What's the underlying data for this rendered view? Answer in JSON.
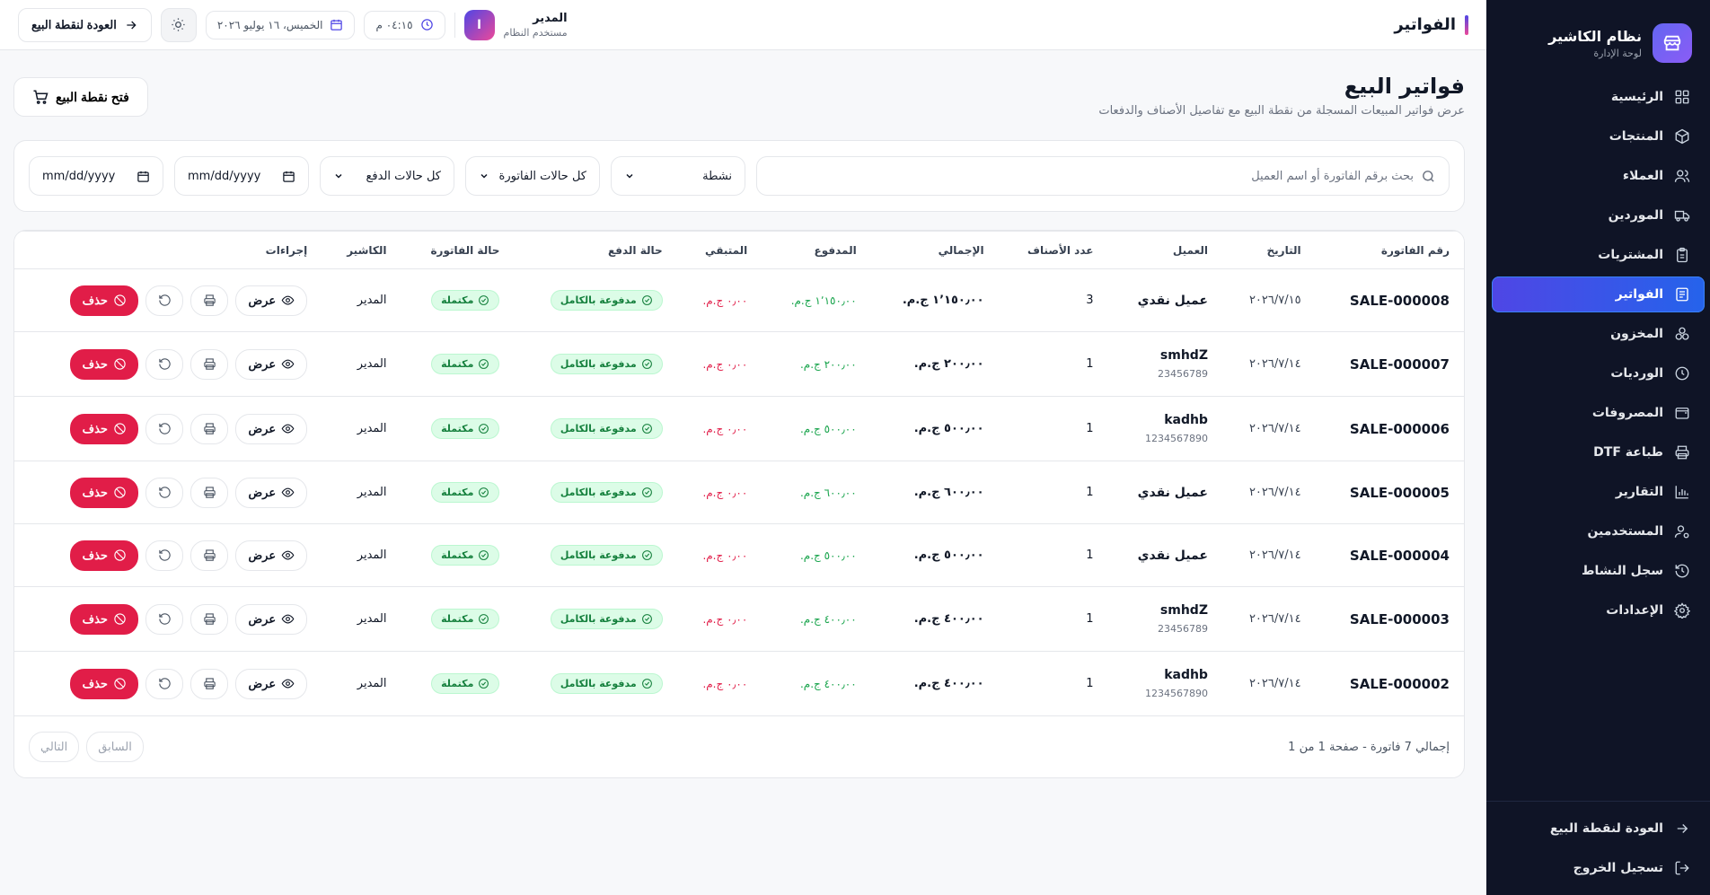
{
  "sidebar": {
    "brand_title": "نظام الكاشير",
    "brand_sub": "لوحة الإدارة",
    "items": [
      {
        "label": "الرئيسية",
        "icon": "grid-icon"
      },
      {
        "label": "المنتجات",
        "icon": "box-icon"
      },
      {
        "label": "العملاء",
        "icon": "users-icon"
      },
      {
        "label": "الموردين",
        "icon": "truck-icon"
      },
      {
        "label": "المشتريات",
        "icon": "clipboard-icon"
      },
      {
        "label": "الفواتير",
        "icon": "receipt-icon",
        "active": true
      },
      {
        "label": "المخزون",
        "icon": "boxes-icon"
      },
      {
        "label": "الورديات",
        "icon": "clock-icon"
      },
      {
        "label": "المصروفات",
        "icon": "wallet-icon"
      },
      {
        "label": "طباعة DTF",
        "icon": "printer-icon"
      },
      {
        "label": "التقارير",
        "icon": "chart-icon"
      },
      {
        "label": "المستخدمين",
        "icon": "user-cog-icon"
      },
      {
        "label": "سجل النشاط",
        "icon": "history-icon"
      },
      {
        "label": "الإعدادات",
        "icon": "gear-icon"
      }
    ],
    "bottom": [
      {
        "label": "العودة لنقطة البيع",
        "icon": "arrow-right-icon"
      },
      {
        "label": "تسجيل الخروج",
        "icon": "logout-icon"
      }
    ]
  },
  "topbar": {
    "page_title": "الفواتير",
    "back_label": "العودة لنقطة البيع",
    "date": "الخميس، ١٦ يوليو ٢٠٢٦",
    "time": "٠٤:١٥ م",
    "user_initial": "ا",
    "user_name": "المدير",
    "user_role": "مستخدم النظام"
  },
  "header": {
    "title": "فواتير البيع",
    "subtitle": "عرض فواتير المبيعات المسجلة من نقطة البيع مع تفاصيل الأصناف والدفعات",
    "open_pos": "فتح نقطة البيع"
  },
  "filters": {
    "search_placeholder": "بحث برقم الفاتورة أو اسم العميل",
    "status": "نشطة",
    "invoice_status": "كل حالات الفاتورة",
    "payment_status": "كل حالات الدفع",
    "date_from": "mm/dd/yyyy",
    "date_to": "mm/dd/yyyy"
  },
  "table": {
    "headers": [
      "رقم الفاتورة",
      "التاريخ",
      "العميل",
      "عدد الأصناف",
      "الإجمالي",
      "المدفوع",
      "المتبقي",
      "حالة الدفع",
      "حالة الفاتورة",
      "الكاشير",
      "إجراءات"
    ],
    "view_label": "عرض",
    "delete_label": "حذف",
    "rows": [
      {
        "id": "SALE-000008",
        "date": "٢٠٢٦/٧/١٥",
        "customer": "عميل نقدي",
        "phone": "",
        "items": "3",
        "total": "١٬١٥٠٫٠٠ ج.م.",
        "paid": "١٬١٥٠٫٠٠ ج.م.",
        "remaining": "٠٫٠٠ ج.م.",
        "pay_status": "مدفوعة بالكامل",
        "inv_status": "مكتملة",
        "cashier": "المدير"
      },
      {
        "id": "SALE-000007",
        "date": "٢٠٢٦/٧/١٤",
        "customer": "smhdZ",
        "phone": "23456789",
        "items": "1",
        "total": "٢٠٠٫٠٠ ج.م.",
        "paid": "٢٠٠٫٠٠ ج.م.",
        "remaining": "٠٫٠٠ ج.م.",
        "pay_status": "مدفوعة بالكامل",
        "inv_status": "مكتملة",
        "cashier": "المدير"
      },
      {
        "id": "SALE-000006",
        "date": "٢٠٢٦/٧/١٤",
        "customer": "kadhb",
        "phone": "1234567890",
        "items": "1",
        "total": "٥٠٠٫٠٠ ج.م.",
        "paid": "٥٠٠٫٠٠ ج.م.",
        "remaining": "٠٫٠٠ ج.م.",
        "pay_status": "مدفوعة بالكامل",
        "inv_status": "مكتملة",
        "cashier": "المدير"
      },
      {
        "id": "SALE-000005",
        "date": "٢٠٢٦/٧/١٤",
        "customer": "عميل نقدي",
        "phone": "",
        "items": "1",
        "total": "٦٠٠٫٠٠ ج.م.",
        "paid": "٦٠٠٫٠٠ ج.م.",
        "remaining": "٠٫٠٠ ج.م.",
        "pay_status": "مدفوعة بالكامل",
        "inv_status": "مكتملة",
        "cashier": "المدير"
      },
      {
        "id": "SALE-000004",
        "date": "٢٠٢٦/٧/١٤",
        "customer": "عميل نقدي",
        "phone": "",
        "items": "1",
        "total": "٥٠٠٫٠٠ ج.م.",
        "paid": "٥٠٠٫٠٠ ج.م.",
        "remaining": "٠٫٠٠ ج.م.",
        "pay_status": "مدفوعة بالكامل",
        "inv_status": "مكتملة",
        "cashier": "المدير"
      },
      {
        "id": "SALE-000003",
        "date": "٢٠٢٦/٧/١٤",
        "customer": "smhdZ",
        "phone": "23456789",
        "items": "1",
        "total": "٤٠٠٫٠٠ ج.م.",
        "paid": "٤٠٠٫٠٠ ج.م.",
        "remaining": "٠٫٠٠ ج.م.",
        "pay_status": "مدفوعة بالكامل",
        "inv_status": "مكتملة",
        "cashier": "المدير"
      },
      {
        "id": "SALE-000002",
        "date": "٢٠٢٦/٧/١٤",
        "customer": "kadhb",
        "phone": "1234567890",
        "items": "1",
        "total": "٤٠٠٫٠٠ ج.م.",
        "paid": "٤٠٠٫٠٠ ج.م.",
        "remaining": "٠٫٠٠ ج.م.",
        "pay_status": "مدفوعة بالكامل",
        "inv_status": "مكتملة",
        "cashier": "المدير"
      }
    ]
  },
  "pager": {
    "info": "إجمالي 7 فاتورة - صفحة 1 من 1",
    "prev": "السابق",
    "next": "التالي"
  }
}
